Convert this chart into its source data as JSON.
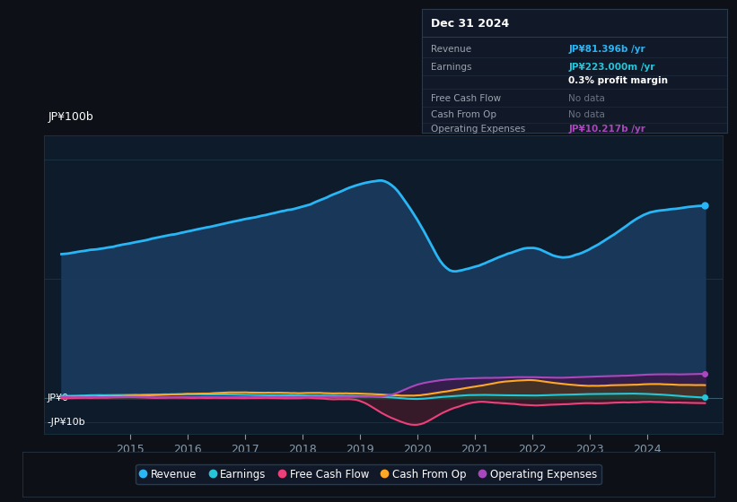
{
  "bg_color": "#0d1117",
  "plot_bg_color": "#0d1b2a",
  "text_color": "#ffffff",
  "grid_color": "#1e3a4a",
  "ylabel_top": "JP¥100b",
  "ylabel_zero": "JP¥0",
  "ylabel_bottom": "-JP¥10b",
  "xlim": [
    2013.5,
    2025.3
  ],
  "ylim": [
    -15,
    110
  ],
  "xticks": [
    2015,
    2016,
    2017,
    2018,
    2019,
    2020,
    2021,
    2022,
    2023,
    2024
  ],
  "series": {
    "Revenue": {
      "color": "#29b6f6",
      "fill_color": "#1a3a5c",
      "linewidth": 2.0
    },
    "Earnings": {
      "color": "#26c6da",
      "fill_color": "#1a4a3a",
      "linewidth": 1.5
    },
    "FreeCashFlow": {
      "color": "#ec407a",
      "fill_color": "#4a1a2a",
      "linewidth": 1.5
    },
    "CashFromOp": {
      "color": "#ffa726",
      "fill_color": "#4a3a1a",
      "linewidth": 1.5
    },
    "OperatingExpenses": {
      "color": "#ab47bc",
      "fill_color": "#3a1a4a",
      "linewidth": 1.5
    }
  },
  "legend": [
    {
      "label": "Revenue",
      "color": "#29b6f6"
    },
    {
      "label": "Earnings",
      "color": "#26c6da"
    },
    {
      "label": "Free Cash Flow",
      "color": "#ec407a"
    },
    {
      "label": "Cash From Op",
      "color": "#ffa726"
    },
    {
      "label": "Operating Expenses",
      "color": "#ab47bc"
    }
  ],
  "info_box": {
    "bg_color": "#111827",
    "border_color": "#2a3a4a",
    "title": "Dec 31 2024",
    "rows": [
      {
        "label": "Revenue",
        "value": "JP¥81.396b /yr",
        "value_color": "#29b6f6"
      },
      {
        "label": "Earnings",
        "value": "JP¥223.000m /yr",
        "value_color": "#26c6da"
      },
      {
        "label": "",
        "value": "0.3% profit margin",
        "value_color": "#ffffff"
      },
      {
        "label": "Free Cash Flow",
        "value": "No data",
        "value_color": "#6b7280"
      },
      {
        "label": "Cash From Op",
        "value": "No data",
        "value_color": "#6b7280"
      },
      {
        "label": "Operating Expenses",
        "value": "JP¥10.217b /yr",
        "value_color": "#ab47bc"
      }
    ]
  }
}
